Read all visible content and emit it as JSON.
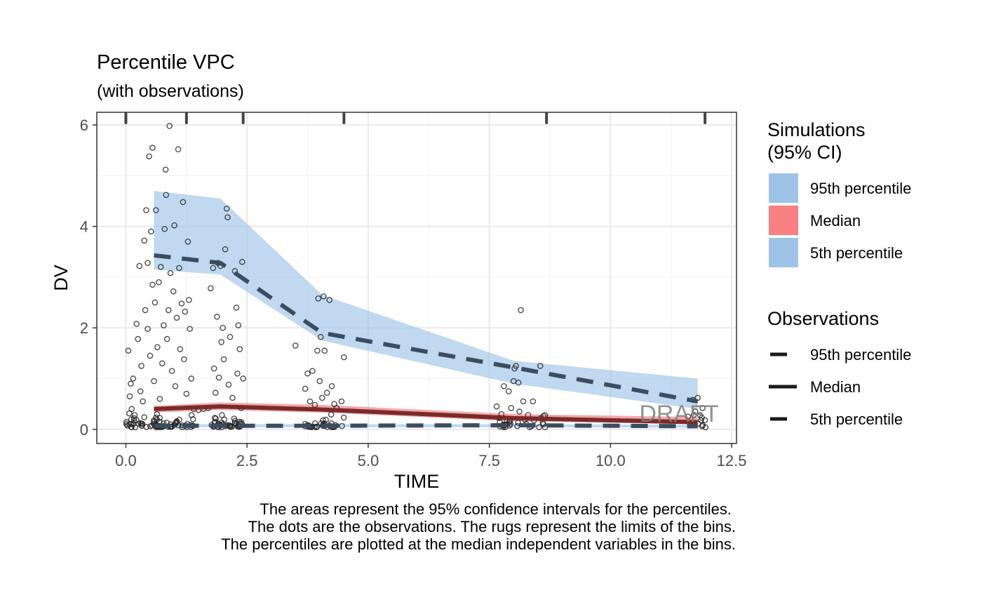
{
  "chart_data": {
    "type": "scatter",
    "title": "Percentile VPC",
    "subtitle": "(with observations)",
    "xlabel": "TIME",
    "ylabel": "DV",
    "xlim": [
      -0.6,
      12.6
    ],
    "ylim": [
      -0.28,
      6.25
    ],
    "x_ticks": [
      "0.0",
      "2.5",
      "5.0",
      "7.5",
      "10.0",
      "12.5"
    ],
    "x_tick_values": [
      0,
      2.5,
      5,
      7.5,
      10,
      12.5
    ],
    "y_ticks": [
      "0",
      "2",
      "4",
      "6"
    ],
    "y_tick_values": [
      0,
      2,
      4,
      6
    ],
    "grid": true,
    "watermark": "DRAFT",
    "bin_limits": [
      0.0,
      1.25,
      2.42,
      4.5,
      8.68,
      11.95
    ],
    "bin_midpoints": [
      0.58,
      1.95,
      4.05,
      8.0,
      11.8
    ],
    "ci_bands": [
      {
        "name": "95th percentile",
        "color": "#9ec3e8",
        "lower": [
          3.15,
          3.05,
          1.75,
          0.9,
          0.4
        ],
        "upper": [
          4.7,
          4.55,
          2.65,
          1.35,
          1.0
        ]
      },
      {
        "name": "Median",
        "color": "#f28a8a",
        "lower": [
          0.33,
          0.38,
          0.33,
          0.16,
          0.1
        ],
        "upper": [
          0.46,
          0.53,
          0.48,
          0.3,
          0.24
        ]
      },
      {
        "name": "5th percentile",
        "color": "#9ec3e8",
        "lower": [
          0.04,
          0.04,
          0.04,
          0.04,
          0.03
        ],
        "upper": [
          0.11,
          0.1,
          0.1,
          0.1,
          0.09
        ]
      }
    ],
    "observed_percentiles": [
      {
        "name": "95th percentile",
        "dash": "long",
        "values": [
          3.43,
          3.28,
          1.9,
          1.22,
          0.55
        ]
      },
      {
        "name": "Median",
        "dash": "solid",
        "values": [
          0.4,
          0.45,
          0.39,
          0.22,
          0.14
        ]
      },
      {
        "name": "5th percentile",
        "dash": "long",
        "values": [
          0.07,
          0.07,
          0.07,
          0.08,
          0.06
        ]
      }
    ],
    "observations": [
      {
        "x": 0.05,
        "y": 1.55
      },
      {
        "x": 0.08,
        "y": 0.65
      },
      {
        "x": 0.1,
        "y": 0.9
      },
      {
        "x": 0.12,
        "y": 0.4
      },
      {
        "x": 0.15,
        "y": 1.0
      },
      {
        "x": 0.18,
        "y": 0.28
      },
      {
        "x": 0.22,
        "y": 2.08
      },
      {
        "x": 0.25,
        "y": 1.78
      },
      {
        "x": 0.28,
        "y": 3.22
      },
      {
        "x": 0.3,
        "y": 0.75
      },
      {
        "x": 0.32,
        "y": 1.25
      },
      {
        "x": 0.35,
        "y": 0.55
      },
      {
        "x": 0.38,
        "y": 3.72
      },
      {
        "x": 0.4,
        "y": 2.35
      },
      {
        "x": 0.42,
        "y": 4.32
      },
      {
        "x": 0.45,
        "y": 3.28
      },
      {
        "x": 0.45,
        "y": 1.98
      },
      {
        "x": 0.48,
        "y": 5.38
      },
      {
        "x": 0.5,
        "y": 1.45
      },
      {
        "x": 0.52,
        "y": 3.9
      },
      {
        "x": 0.55,
        "y": 5.55
      },
      {
        "x": 0.55,
        "y": 2.85
      },
      {
        "x": 0.58,
        "y": 0.95
      },
      {
        "x": 0.6,
        "y": 2.5
      },
      {
        "x": 0.62,
        "y": 4.32
      },
      {
        "x": 0.65,
        "y": 1.62
      },
      {
        "x": 0.68,
        "y": 2.9
      },
      {
        "x": 0.7,
        "y": 0.6
      },
      {
        "x": 0.72,
        "y": 3.2
      },
      {
        "x": 0.75,
        "y": 1.3
      },
      {
        "x": 0.78,
        "y": 2.05
      },
      {
        "x": 0.8,
        "y": 3.95
      },
      {
        "x": 0.82,
        "y": 5.12
      },
      {
        "x": 0.83,
        "y": 4.62
      },
      {
        "x": 0.85,
        "y": 1.78
      },
      {
        "x": 0.88,
        "y": 2.35
      },
      {
        "x": 0.9,
        "y": 5.98
      },
      {
        "x": 0.92,
        "y": 3.08
      },
      {
        "x": 0.95,
        "y": 1.15
      },
      {
        "x": 0.98,
        "y": 2.72
      },
      {
        "x": 1.0,
        "y": 4.02
      },
      {
        "x": 1.02,
        "y": 0.85
      },
      {
        "x": 1.05,
        "y": 2.2
      },
      {
        "x": 1.08,
        "y": 5.52
      },
      {
        "x": 1.1,
        "y": 3.18
      },
      {
        "x": 1.12,
        "y": 1.58
      },
      {
        "x": 1.15,
        "y": 2.48
      },
      {
        "x": 1.18,
        "y": 4.48
      },
      {
        "x": 1.2,
        "y": 1.38
      },
      {
        "x": 1.22,
        "y": 2.32
      },
      {
        "x": 1.25,
        "y": 0.7
      },
      {
        "x": 1.28,
        "y": 3.7
      },
      {
        "x": 1.3,
        "y": 2.55
      },
      {
        "x": 1.32,
        "y": 1.98
      },
      {
        "x": 1.35,
        "y": 1.0
      },
      {
        "x": 1.4,
        "y": 0.4
      },
      {
        "x": 1.5,
        "y": 0.38
      },
      {
        "x": 1.6,
        "y": 0.4
      },
      {
        "x": 1.7,
        "y": 0.42
      },
      {
        "x": 1.75,
        "y": 2.78
      },
      {
        "x": 1.8,
        "y": 3.18
      },
      {
        "x": 1.82,
        "y": 1.2
      },
      {
        "x": 1.85,
        "y": 0.72
      },
      {
        "x": 1.88,
        "y": 2.22
      },
      {
        "x": 1.9,
        "y": 3.28
      },
      {
        "x": 1.92,
        "y": 1.02
      },
      {
        "x": 1.95,
        "y": 3.22
      },
      {
        "x": 1.97,
        "y": 1.72
      },
      {
        "x": 2.0,
        "y": 2.0
      },
      {
        "x": 2.02,
        "y": 1.38
      },
      {
        "x": 2.05,
        "y": 3.55
      },
      {
        "x": 2.08,
        "y": 4.35
      },
      {
        "x": 2.1,
        "y": 4.18
      },
      {
        "x": 2.12,
        "y": 0.88
      },
      {
        "x": 2.15,
        "y": 1.82
      },
      {
        "x": 2.2,
        "y": 0.62
      },
      {
        "x": 2.25,
        "y": 3.12
      },
      {
        "x": 2.28,
        "y": 2.4
      },
      {
        "x": 2.3,
        "y": 1.1
      },
      {
        "x": 2.32,
        "y": 2.05
      },
      {
        "x": 2.35,
        "y": 1.58
      },
      {
        "x": 2.38,
        "y": 0.42
      },
      {
        "x": 2.4,
        "y": 3.3
      },
      {
        "x": 2.42,
        "y": 1.0
      },
      {
        "x": 3.5,
        "y": 1.65
      },
      {
        "x": 3.7,
        "y": 0.8
      },
      {
        "x": 3.75,
        "y": 1.1
      },
      {
        "x": 3.8,
        "y": 0.55
      },
      {
        "x": 3.85,
        "y": 1.15
      },
      {
        "x": 3.9,
        "y": 0.48
      },
      {
        "x": 3.95,
        "y": 1.55
      },
      {
        "x": 3.97,
        "y": 2.58
      },
      {
        "x": 4.0,
        "y": 0.95
      },
      {
        "x": 4.02,
        "y": 1.82
      },
      {
        "x": 4.05,
        "y": 0.62
      },
      {
        "x": 4.08,
        "y": 2.62
      },
      {
        "x": 4.1,
        "y": 1.55
      },
      {
        "x": 4.15,
        "y": 0.72
      },
      {
        "x": 4.2,
        "y": 2.55
      },
      {
        "x": 4.25,
        "y": 0.85
      },
      {
        "x": 4.3,
        "y": 0.5
      },
      {
        "x": 4.35,
        "y": 0.42
      },
      {
        "x": 4.45,
        "y": 0.55
      },
      {
        "x": 4.5,
        "y": 1.42
      },
      {
        "x": 7.65,
        "y": 0.45
      },
      {
        "x": 7.75,
        "y": 0.3
      },
      {
        "x": 7.8,
        "y": 0.85
      },
      {
        "x": 7.9,
        "y": 0.75
      },
      {
        "x": 7.95,
        "y": 0.42
      },
      {
        "x": 8.0,
        "y": 0.95
      },
      {
        "x": 8.02,
        "y": 1.2
      },
      {
        "x": 8.05,
        "y": 1.25
      },
      {
        "x": 8.1,
        "y": 0.92
      },
      {
        "x": 8.12,
        "y": 0.35
      },
      {
        "x": 8.15,
        "y": 2.35
      },
      {
        "x": 8.2,
        "y": 0.55
      },
      {
        "x": 8.3,
        "y": 0.28
      },
      {
        "x": 8.4,
        "y": 0.55
      },
      {
        "x": 8.55,
        "y": 1.25
      },
      {
        "x": 8.65,
        "y": 0.28
      },
      {
        "x": 11.6,
        "y": 0.25
      },
      {
        "x": 11.7,
        "y": 0.58
      },
      {
        "x": 11.75,
        "y": 0.35
      },
      {
        "x": 11.8,
        "y": 0.62
      },
      {
        "x": 11.85,
        "y": 0.28
      },
      {
        "x": 11.9,
        "y": 0.42
      },
      {
        "x": 11.95,
        "y": 0.18
      }
    ],
    "legend": {
      "placement": "right",
      "simulations_title_line1": "Simulations",
      "simulations_title_line2": "(95% CI)",
      "simulations": [
        {
          "label": "95th percentile",
          "color": "#9ec3e8"
        },
        {
          "label": "Median",
          "color": "#f88080"
        },
        {
          "label": "5th percentile",
          "color": "#9ec3e8"
        }
      ],
      "observations_title": "Observations",
      "observations": [
        {
          "label": "95th percentile",
          "style": "dashed"
        },
        {
          "label": "Median",
          "style": "solid"
        },
        {
          "label": "5th percentile",
          "style": "dashed"
        }
      ]
    },
    "caption": [
      "The areas represent the 95% confidence intervals for the percentiles.",
      "The dots are the observations. The rugs represent the limits of the bins.",
      "The percentiles are plotted at the median independent variables in the bins."
    ]
  }
}
